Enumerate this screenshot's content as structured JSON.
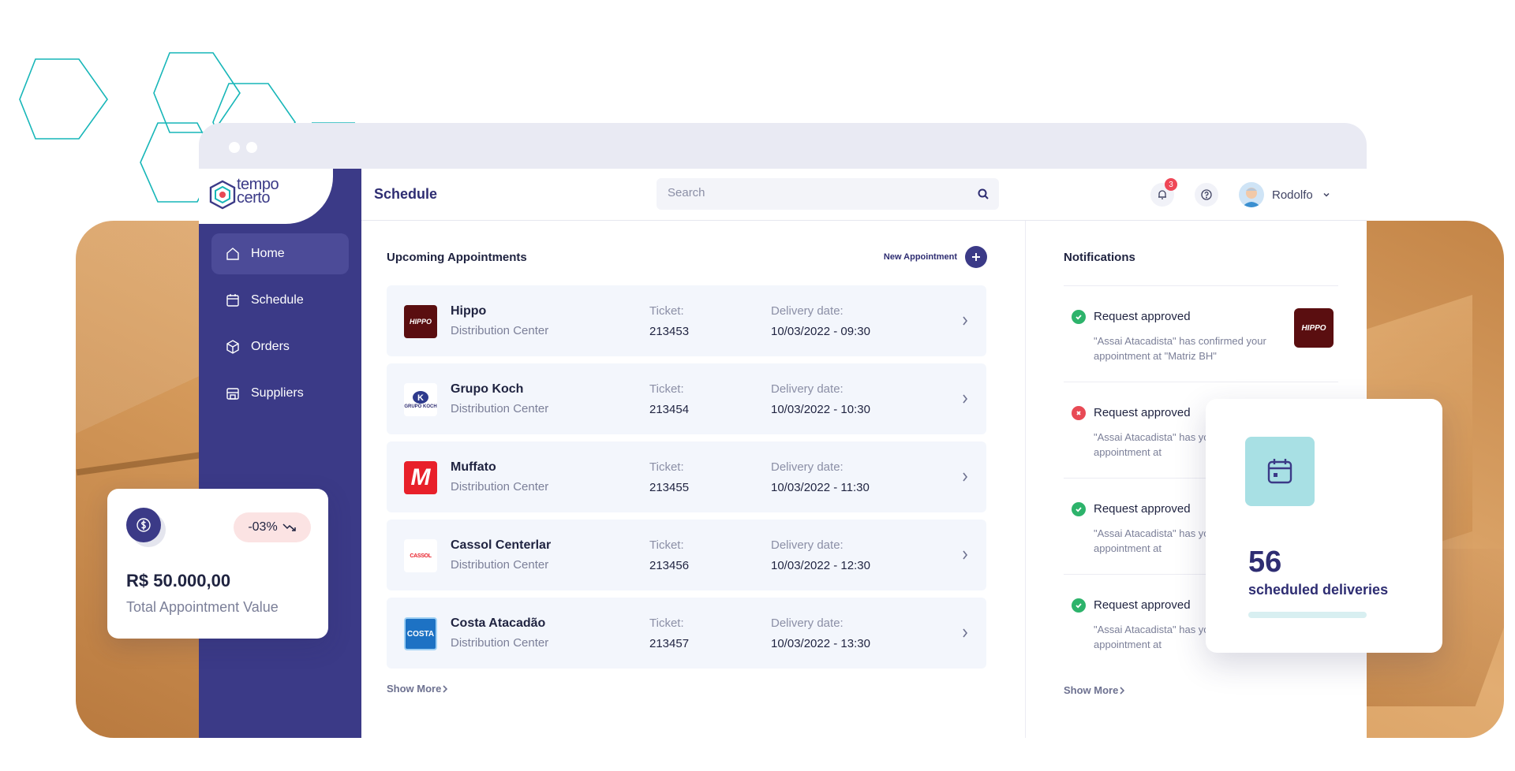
{
  "app": {
    "logo_line1": "tempo",
    "logo_line2": "certo"
  },
  "colors": {
    "primary": "#3b3a87",
    "success": "#2db36b",
    "error": "#e84a55",
    "accent_tile": "#a8e0e4"
  },
  "sidebar": {
    "items": [
      {
        "label": "Home",
        "icon": "home-icon",
        "active": true
      },
      {
        "label": "Schedule",
        "icon": "calendar-icon",
        "active": false
      },
      {
        "label": "Orders",
        "icon": "box-icon",
        "active": false
      },
      {
        "label": "Suppliers",
        "icon": "store-icon",
        "active": false
      }
    ]
  },
  "header": {
    "title": "Schedule",
    "search_placeholder": "Search",
    "notification_count": "3",
    "user_name": "Rodolfo"
  },
  "appointments": {
    "title": "Upcoming Appointments",
    "new_label": "New Appointment",
    "ticket_label": "Ticket:",
    "delivery_label": "Delivery date:",
    "show_more": "Show More",
    "rows": [
      {
        "name": "Hippo",
        "sub": "Distribution Center",
        "ticket": "213453",
        "date": "10/03/2022 - 09:30",
        "logo_text": "HIPPO"
      },
      {
        "name": "Grupo Koch",
        "sub": "Distribution Center",
        "ticket": "213454",
        "date": "10/03/2022 - 10:30",
        "logo_text": "GRUPO KOCH"
      },
      {
        "name": "Muffato",
        "sub": "Distribution Center",
        "ticket": "213455",
        "date": "10/03/2022 - 11:30",
        "logo_text": "M"
      },
      {
        "name": "Cassol Centerlar",
        "sub": "Distribution Center",
        "ticket": "213456",
        "date": "10/03/2022 - 12:30",
        "logo_text": "CASSOL"
      },
      {
        "name": "Costa Atacadão",
        "sub": "Distribution Center",
        "ticket": "213457",
        "date": "10/03/2022 - 13:30",
        "logo_text": "COSTA"
      }
    ]
  },
  "notifications": {
    "title": "Notifications",
    "show_more": "Show More",
    "items": [
      {
        "status": "approved",
        "title": "Request approved",
        "body": "\"Assai Atacadista\" has confirmed your appointment at \"Matriz BH\"",
        "logo_text": "HIPPO"
      },
      {
        "status": "rejected",
        "title": "Request approved",
        "body": "\"Assai Atacadista\" has your appointment at"
      },
      {
        "status": "approved",
        "title": "Request approved",
        "body": "\"Assai Atacadista\" has your appointment at"
      },
      {
        "status": "approved",
        "title": "Request approved",
        "body": "\"Assai Atacadista\" has your appointment at"
      }
    ]
  },
  "value_card": {
    "delta": "-03%",
    "amount": "R$ 50.000,00",
    "label": "Total Appointment Value"
  },
  "sched_card": {
    "count": "56",
    "label": "scheduled deliveries"
  }
}
